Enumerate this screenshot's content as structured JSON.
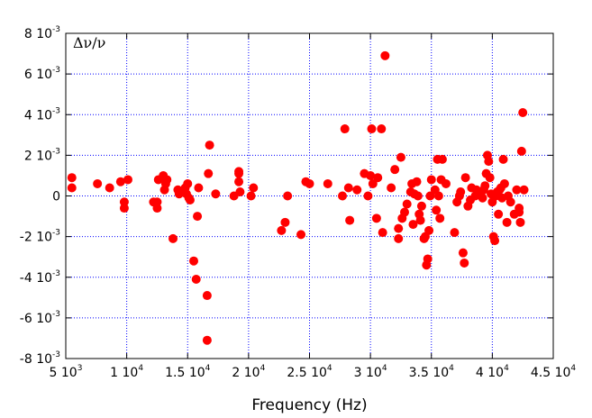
{
  "chart_data": {
    "type": "scatter",
    "title": "",
    "xlabel": "Frequency (Hz)",
    "ylabel": "",
    "inset_label": "Δν/ν",
    "xlim": [
      5000,
      45000
    ],
    "ylim": [
      -0.008,
      0.008
    ],
    "grid": true,
    "grid_style": "dotted",
    "legend": "none",
    "x_ticks": [
      {
        "value": 5000,
        "mant": "5",
        "exp": "3"
      },
      {
        "value": 10000,
        "mant": "1",
        "exp": "4"
      },
      {
        "value": 15000,
        "mant": "1.5",
        "exp": "4"
      },
      {
        "value": 20000,
        "mant": "2",
        "exp": "4"
      },
      {
        "value": 25000,
        "mant": "2.5",
        "exp": "4"
      },
      {
        "value": 30000,
        "mant": "3",
        "exp": "4"
      },
      {
        "value": 35000,
        "mant": "3.5",
        "exp": "4"
      },
      {
        "value": 40000,
        "mant": "4",
        "exp": "4"
      },
      {
        "value": 45000,
        "mant": "4.5",
        "exp": "4"
      }
    ],
    "y_ticks": [
      {
        "value": 0.008,
        "mant": "8",
        "exp": "-3"
      },
      {
        "value": 0.006,
        "mant": "6",
        "exp": "-3"
      },
      {
        "value": 0.004,
        "mant": "4",
        "exp": "-3"
      },
      {
        "value": 0.002,
        "mant": "2",
        "exp": "-3"
      },
      {
        "value": 0,
        "mant": "0",
        "exp": ""
      },
      {
        "value": -0.002,
        "mant": "-2",
        "exp": "-3"
      },
      {
        "value": -0.004,
        "mant": "-4",
        "exp": "-3"
      },
      {
        "value": -0.006,
        "mant": "-6",
        "exp": "-3"
      },
      {
        "value": -0.008,
        "mant": "-8",
        "exp": "-3"
      }
    ],
    "marker_color": "#ff0000",
    "series": [
      {
        "points": [
          [
            5500,
            0.0009
          ],
          [
            5500,
            0.0004
          ],
          [
            7600,
            0.0006
          ],
          [
            8600,
            0.0004
          ],
          [
            9500,
            0.0007
          ],
          [
            9800,
            -0.0003
          ],
          [
            9800,
            -0.0006
          ],
          [
            10100,
            0.0008
          ],
          [
            12200,
            -0.0003
          ],
          [
            12500,
            -0.0003
          ],
          [
            12500,
            -0.0006
          ],
          [
            12600,
            0.0008
          ],
          [
            13000,
            0.001
          ],
          [
            13100,
            0.0003
          ],
          [
            13200,
            0.0006
          ],
          [
            13300,
            0.0008
          ],
          [
            13800,
            -0.0021
          ],
          [
            14200,
            0.0003
          ],
          [
            14300,
            0.0001
          ],
          [
            14500,
            0.0002
          ],
          [
            14800,
            0.0004
          ],
          [
            14900,
            0.0001
          ],
          [
            15000,
            0.0006
          ],
          [
            15100,
            -0.0001
          ],
          [
            15200,
            -0.0002
          ],
          [
            15500,
            -0.0032
          ],
          [
            15700,
            -0.0041
          ],
          [
            15800,
            -0.001
          ],
          [
            15900,
            0.0004
          ],
          [
            16600,
            -0.0049
          ],
          [
            16600,
            -0.0071
          ],
          [
            16700,
            0.0011
          ],
          [
            16800,
            0.0025
          ],
          [
            17300,
            0.0001
          ],
          [
            18800,
            0.0
          ],
          [
            19200,
            0.0012
          ],
          [
            19200,
            0.0011
          ],
          [
            19200,
            0.0007
          ],
          [
            19300,
            0.0002
          ],
          [
            20200,
            0.0
          ],
          [
            20400,
            0.0004
          ],
          [
            22700,
            -0.0017
          ],
          [
            23000,
            -0.0013
          ],
          [
            23200,
            0.0
          ],
          [
            24300,
            -0.0019
          ],
          [
            24700,
            0.0007
          ],
          [
            25000,
            0.0006
          ],
          [
            26500,
            0.0006
          ],
          [
            27700,
            0.0
          ],
          [
            27900,
            0.0033
          ],
          [
            28200,
            0.0004
          ],
          [
            28300,
            -0.0012
          ],
          [
            28900,
            0.0003
          ],
          [
            29500,
            0.0011
          ],
          [
            29800,
            0.0
          ],
          [
            30000,
            0.001
          ],
          [
            30100,
            0.0033
          ],
          [
            30200,
            0.0006
          ],
          [
            30500,
            -0.0011
          ],
          [
            30600,
            0.0009
          ],
          [
            30900,
            0.0033
          ],
          [
            31000,
            -0.0018
          ],
          [
            31200,
            0.0069
          ],
          [
            31700,
            0.0004
          ],
          [
            32000,
            0.0013
          ],
          [
            32300,
            -0.0021
          ],
          [
            32300,
            -0.0016
          ],
          [
            32500,
            0.0019
          ],
          [
            32600,
            -0.0011
          ],
          [
            32800,
            -0.0008
          ],
          [
            33000,
            -0.0004
          ],
          [
            33300,
            0.0002
          ],
          [
            33400,
            0.0006
          ],
          [
            33500,
            -0.0014
          ],
          [
            33600,
            0.0001
          ],
          [
            33800,
            0.0007
          ],
          [
            33900,
            0.0
          ],
          [
            34000,
            -0.0009
          ],
          [
            34100,
            -0.0012
          ],
          [
            34200,
            -0.0005
          ],
          [
            34400,
            -0.0021
          ],
          [
            34500,
            -0.002
          ],
          [
            34600,
            -0.0034
          ],
          [
            34700,
            -0.0031
          ],
          [
            34800,
            -0.0017
          ],
          [
            34900,
            0.0
          ],
          [
            35000,
            0.0008
          ],
          [
            35300,
            0.0003
          ],
          [
            35400,
            -0.0007
          ],
          [
            35500,
            0.0018
          ],
          [
            35600,
            0.0
          ],
          [
            35700,
            -0.0011
          ],
          [
            35800,
            0.0008
          ],
          [
            35900,
            0.0018
          ],
          [
            36200,
            0.0006
          ],
          [
            36900,
            -0.0018
          ],
          [
            37100,
            -0.0003
          ],
          [
            37300,
            0.0
          ],
          [
            37400,
            0.0002
          ],
          [
            37600,
            -0.0028
          ],
          [
            37700,
            -0.0033
          ],
          [
            37800,
            0.0009
          ],
          [
            38000,
            -0.0005
          ],
          [
            38200,
            -0.0002
          ],
          [
            38300,
            0.0004
          ],
          [
            38600,
            0.0
          ],
          [
            38700,
            0.0003
          ],
          [
            39000,
            0.0001
          ],
          [
            39200,
            -0.0001
          ],
          [
            39300,
            0.0003
          ],
          [
            39400,
            0.0005
          ],
          [
            39500,
            0.0011
          ],
          [
            39600,
            0.002
          ],
          [
            39700,
            0.0017
          ],
          [
            39800,
            0.0009
          ],
          [
            39900,
            0.0001
          ],
          [
            40000,
            -0.0003
          ],
          [
            40100,
            -0.002
          ],
          [
            40200,
            -0.0022
          ],
          [
            40300,
            0.0
          ],
          [
            40400,
            0.0002
          ],
          [
            40500,
            -0.0009
          ],
          [
            40600,
            0.0003
          ],
          [
            40700,
            0.0004
          ],
          [
            40800,
            -0.0001
          ],
          [
            40900,
            0.0018
          ],
          [
            41000,
            0.0006
          ],
          [
            41200,
            -0.0013
          ],
          [
            41300,
            0.0
          ],
          [
            41500,
            -0.0003
          ],
          [
            41800,
            -0.0009
          ],
          [
            42000,
            0.0003
          ],
          [
            42200,
            -0.0006
          ],
          [
            42200,
            -0.0008
          ],
          [
            42300,
            -0.0013
          ],
          [
            42400,
            0.0022
          ],
          [
            42500,
            0.0041
          ],
          [
            42600,
            0.0003
          ]
        ]
      }
    ]
  }
}
